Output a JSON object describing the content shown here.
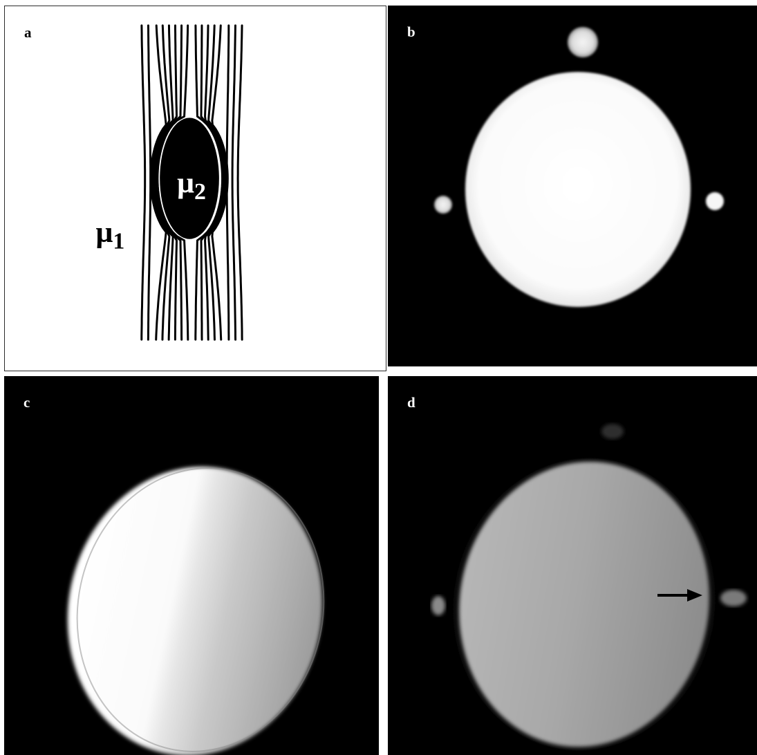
{
  "panels": {
    "a": {
      "letter": "a",
      "medium_outer_symbol": "μ",
      "medium_outer_subscript": "1",
      "medium_inner_symbol": "μ",
      "medium_inner_subscript": "2",
      "colors": {
        "background": "#ffffff",
        "lines": "#000000",
        "inclusion": "#000000"
      }
    },
    "b": {
      "letter": "b"
    },
    "c": {
      "letter": "c"
    },
    "d": {
      "letter": "d",
      "marker": "arrow-icon"
    }
  }
}
